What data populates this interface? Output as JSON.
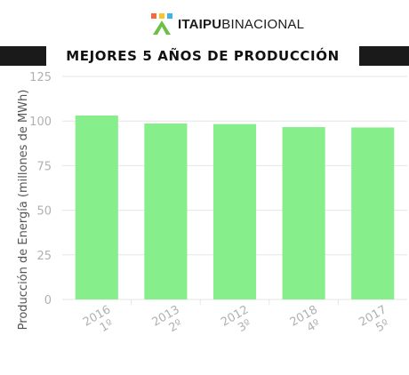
{
  "header": {
    "logo_bold": "ITAIPU",
    "logo_light": "BINACIONAL",
    "title": "MEJORES 5 AÑOS DE PRODUCCIÓN"
  },
  "colors": {
    "bar": "#86ef8b",
    "title_bar": "#1a1a1a",
    "grid": "#e6e6e6",
    "tick": "#b0b0b0"
  },
  "chart_data": {
    "type": "bar",
    "categories": [
      "2016",
      "2013",
      "2012",
      "2018",
      "2017"
    ],
    "rank_labels": [
      "1º",
      "2º",
      "3º",
      "4º",
      "5º"
    ],
    "values": [
      103.1,
      98.6,
      98.3,
      96.6,
      96.4
    ],
    "ylabel": "Producción de Energía (millones de MWh)",
    "xlabel": "",
    "ylim": [
      0,
      125
    ],
    "yticks": [
      0,
      25,
      50,
      75,
      100,
      125
    ],
    "grid": true,
    "legend": "none"
  }
}
